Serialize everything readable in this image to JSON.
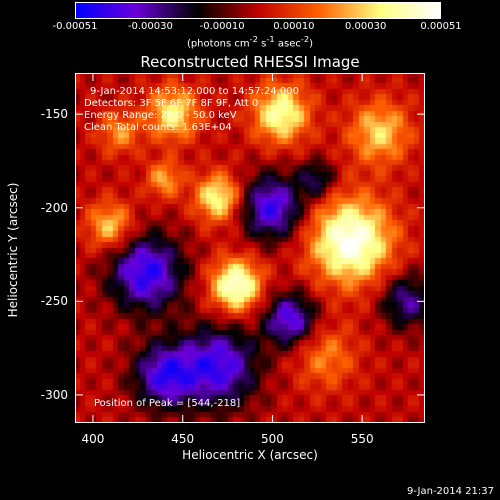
{
  "chart_data": {
    "type": "heatmap",
    "title": "Reconstructed RHESSI Image",
    "xlabel": "Heliocentric X (arcsec)",
    "ylabel": "Heliocentric Y (arcsec)",
    "xlim": [
      390,
      585
    ],
    "ylim": [
      -315,
      -128
    ],
    "xticks": [
      "400",
      "450",
      "500",
      "550"
    ],
    "yticks": [
      "-150",
      "-200",
      "-250",
      "-300"
    ],
    "colorbar": {
      "ticks": [
        "-0.00051",
        "-0.00030",
        "-0.00010",
        "0.00010",
        "0.00030",
        "0.00051"
      ],
      "unit_html": "(photons cm<sup>-2</sup> s<sup>-1</sup> asec<sup>-2</sup>)",
      "range": [
        -0.00051,
        0.00051
      ],
      "colors": [
        "#0000ff",
        "#6a00d8",
        "#000000",
        "#c00000",
        "#ff6000",
        "#ffff80",
        "#ffffff"
      ]
    },
    "annotations": {
      "time_range": "9-Jan-2014 14:53:12.000 to 14:57:24.000",
      "detectors": "Detectors: 3F 5F 6F 7F 8F 9F, Att 0",
      "energy": "Energy Range: 25.0 - 50.0 keV",
      "method": "Clean     Total counts: 1.63E+04",
      "peak": "Position of Peak = [544,-218]"
    },
    "sources": [
      {
        "x": 544,
        "y": -218,
        "peak": 0.00051,
        "sigma": 16
      },
      {
        "x": 480,
        "y": -242,
        "peak": 0.00048,
        "sigma": 10
      },
      {
        "x": 470,
        "y": -195,
        "peak": 0.00038,
        "sigma": 9
      },
      {
        "x": 505,
        "y": -150,
        "peak": 0.0004,
        "sigma": 11
      },
      {
        "x": 445,
        "y": -150,
        "peak": 0.00035,
        "sigma": 10
      },
      {
        "x": 560,
        "y": -160,
        "peak": 0.0003,
        "sigma": 12
      },
      {
        "x": 410,
        "y": -210,
        "peak": 0.0003,
        "sigma": 9
      },
      {
        "x": 440,
        "y": -185,
        "peak": 0.00025,
        "sigma": 7
      },
      {
        "x": 530,
        "y": -280,
        "peak": 0.0002,
        "sigma": 12
      },
      {
        "x": 415,
        "y": -160,
        "peak": 0.00022,
        "sigma": 8
      },
      {
        "x": 430,
        "y": -235,
        "peak": -0.00045,
        "sigma": 14
      },
      {
        "x": 500,
        "y": -200,
        "peak": -0.00042,
        "sigma": 12
      },
      {
        "x": 470,
        "y": -285,
        "peak": -0.00042,
        "sigma": 15
      },
      {
        "x": 440,
        "y": -290,
        "peak": -0.0004,
        "sigma": 12
      },
      {
        "x": 510,
        "y": -260,
        "peak": -0.0004,
        "sigma": 10
      },
      {
        "x": 525,
        "y": -185,
        "peak": -0.00025,
        "sigma": 7
      },
      {
        "x": 575,
        "y": -250,
        "peak": -0.0003,
        "sigma": 10
      }
    ]
  },
  "timestamp": "9-Jan-2014 21:37"
}
